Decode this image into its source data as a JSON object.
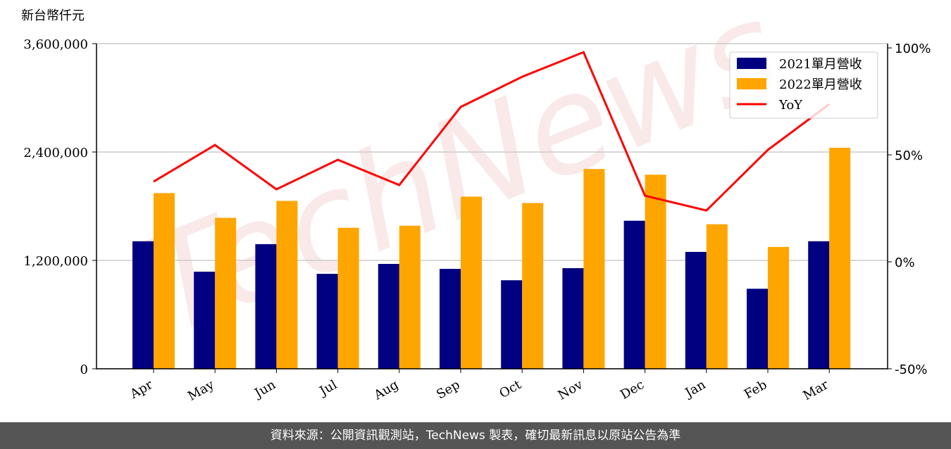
{
  "chart_data": {
    "type": "bar",
    "y_label": "新台幣仟元",
    "categories": [
      "Apr",
      "May",
      "Jun",
      "Jul",
      "Aug",
      "Sep",
      "Oct",
      "Nov",
      "Dec",
      "Jan",
      "Feb",
      "Mar"
    ],
    "series": [
      {
        "name": "2021單月營收",
        "color": "#000080",
        "values": [
          1412000,
          1075000,
          1380000,
          1051000,
          1161000,
          1106000,
          980000,
          1114000,
          1639000,
          1294000,
          886000,
          1412000
        ]
      },
      {
        "name": "2022單月營收",
        "color": "#ffa500",
        "values": [
          1945000,
          1671000,
          1859000,
          1561000,
          1584000,
          1906000,
          1835000,
          2212000,
          2149000,
          1600000,
          1349000,
          2447000
        ]
      },
      {
        "name": "YoY",
        "type": "line",
        "axis": "y2",
        "color": "#ff0000",
        "values": [
          37.5,
          54.6,
          33.9,
          47.7,
          35.9,
          72.4,
          86.5,
          98,
          30.9,
          24,
          52.3,
          73.7
        ]
      }
    ],
    "ylim": [
      0,
      3600000
    ],
    "yticks": [
      0,
      {
        "value": 1200000,
        "label": "1,200,000"
      },
      {
        "value": 2400000,
        "label": "2,400,000"
      },
      {
        "value": 3600000,
        "label": "3,600,000"
      }
    ],
    "y2lim": [
      -50,
      102
    ],
    "y2ticks": [
      {
        "value": -50,
        "label": "-50%"
      },
      {
        "value": 0,
        "label": "0%"
      },
      {
        "value": 50,
        "label": "50%"
      },
      {
        "value": 100,
        "label": "100%"
      }
    ],
    "grid": true,
    "legend": "upper right",
    "watermark": "TechNews",
    "footer": "資料來源：公開資訊觀測站，TechNews 製表，確切最新訊息以原站公告為準"
  }
}
